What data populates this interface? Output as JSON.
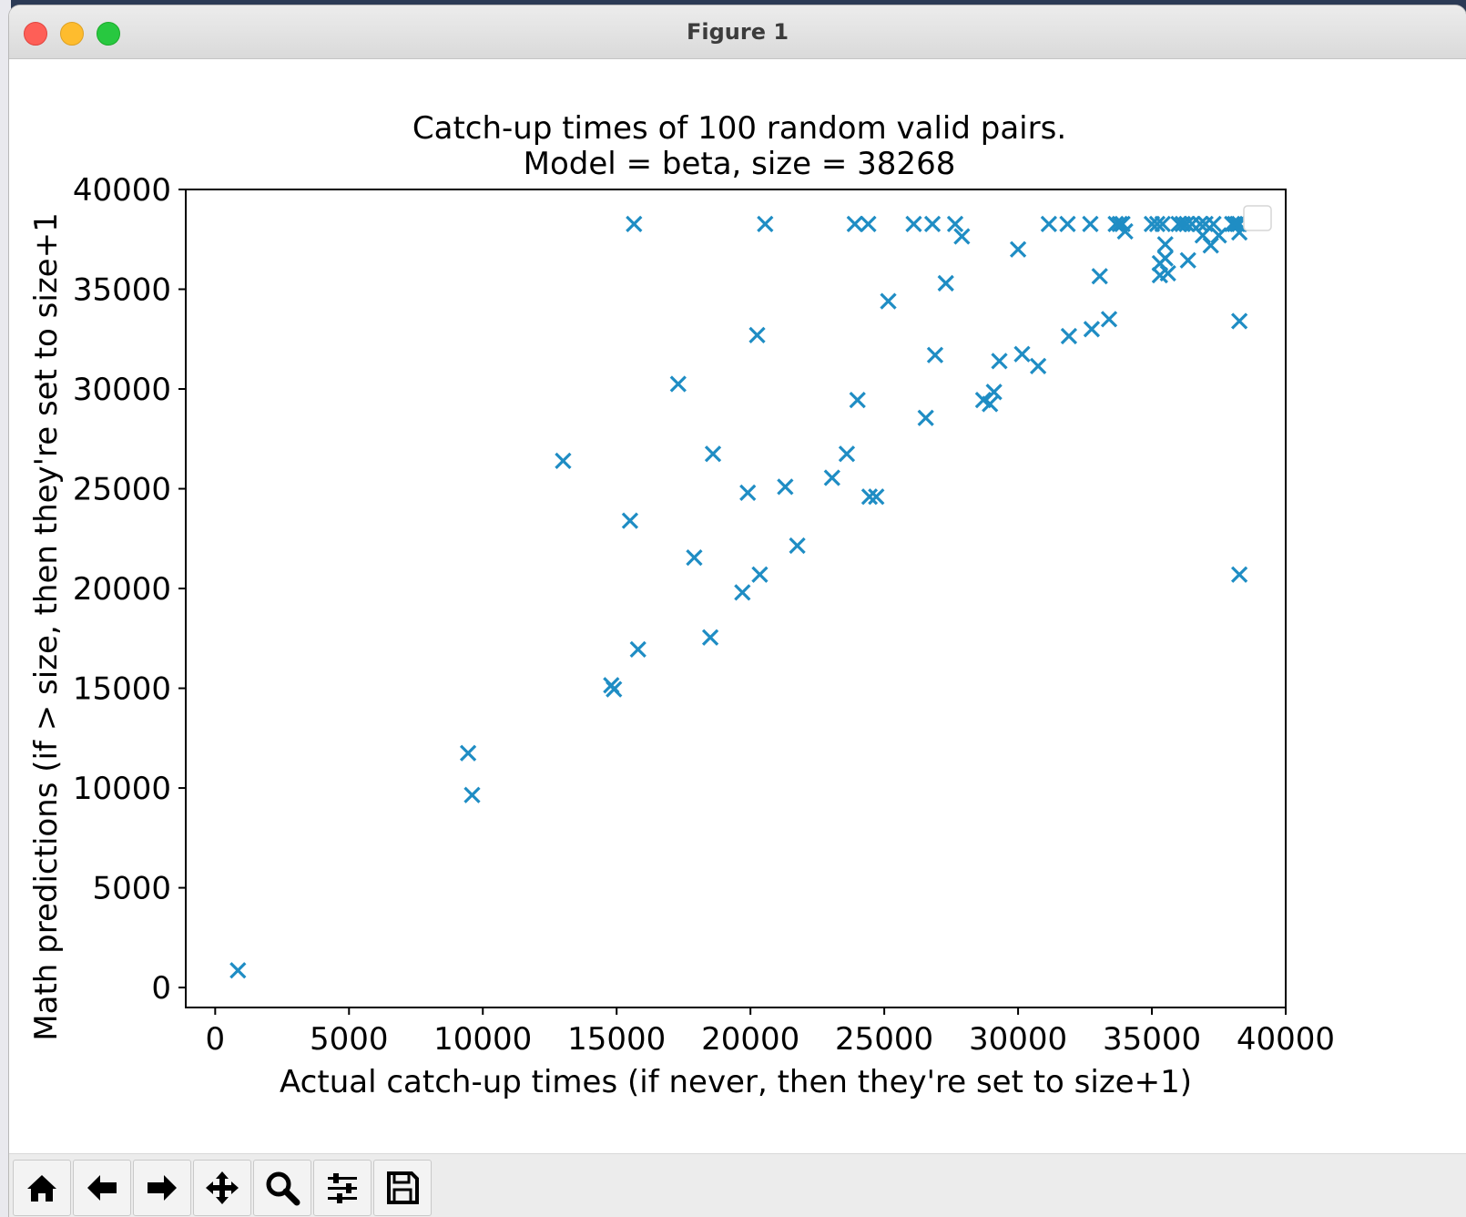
{
  "window": {
    "title": "Figure 1"
  },
  "toolbar": {
    "buttons": [
      {
        "name": "home",
        "icon": "home-icon"
      },
      {
        "name": "back",
        "icon": "arrow-left-icon"
      },
      {
        "name": "forward",
        "icon": "arrow-right-icon"
      },
      {
        "name": "pan",
        "icon": "move-icon"
      },
      {
        "name": "zoom",
        "icon": "magnifier-icon"
      },
      {
        "name": "configure-subplots",
        "icon": "sliders-icon"
      },
      {
        "name": "save",
        "icon": "floppy-disk-icon"
      }
    ]
  },
  "chart_data": {
    "type": "scatter",
    "title": "Catch-up times of 100 random valid pairs.",
    "subtitle": "Model = beta, size = 38268",
    "xlabel": "Actual catch-up times (if never, then they're set to size+1)",
    "ylabel": "Math predictions (if > size, then they're set to size+1",
    "xlim": [
      -1100,
      40000
    ],
    "ylim": [
      -1000,
      40000
    ],
    "xticks": [
      0,
      5000,
      10000,
      15000,
      20000,
      25000,
      30000,
      35000,
      40000
    ],
    "yticks": [
      0,
      5000,
      10000,
      15000,
      20000,
      25000,
      30000,
      35000,
      40000
    ],
    "marker": "x",
    "color": "#1f8dc4",
    "legend": "top-right (empty)",
    "grid": false,
    "series": [
      {
        "points": [
          [
            850,
            860
          ],
          [
            9450,
            11750
          ],
          [
            9600,
            9650
          ],
          [
            13000,
            26400
          ],
          [
            14800,
            15150
          ],
          [
            14900,
            14950
          ],
          [
            15500,
            23400
          ],
          [
            15650,
            38269
          ],
          [
            15800,
            16950
          ],
          [
            17300,
            30250
          ],
          [
            17900,
            21550
          ],
          [
            18500,
            17550
          ],
          [
            18600,
            26750
          ],
          [
            19700,
            19800
          ],
          [
            19900,
            24800
          ],
          [
            20250,
            32700
          ],
          [
            20350,
            20700
          ],
          [
            20550,
            38269
          ],
          [
            21300,
            25100
          ],
          [
            21750,
            22150
          ],
          [
            23050,
            25550
          ],
          [
            23600,
            26750
          ],
          [
            23900,
            38269
          ],
          [
            24000,
            29450
          ],
          [
            24400,
            38269
          ],
          [
            24450,
            24600
          ],
          [
            24700,
            24600
          ],
          [
            25150,
            34400
          ],
          [
            26100,
            38269
          ],
          [
            26550,
            28550
          ],
          [
            26800,
            38269
          ],
          [
            26900,
            31700
          ],
          [
            27300,
            35300
          ],
          [
            27650,
            38269
          ],
          [
            27900,
            37650
          ],
          [
            28700,
            29450
          ],
          [
            28950,
            29250
          ],
          [
            29100,
            29850
          ],
          [
            29300,
            31400
          ],
          [
            30000,
            37000
          ],
          [
            30150,
            31750
          ],
          [
            30750,
            31150
          ],
          [
            31150,
            38269
          ],
          [
            31850,
            38269
          ],
          [
            31900,
            32650
          ],
          [
            32700,
            38269
          ],
          [
            32750,
            33000
          ],
          [
            33050,
            35650
          ],
          [
            33400,
            33500
          ],
          [
            33650,
            38269
          ],
          [
            33800,
            38269
          ],
          [
            33900,
            38269
          ],
          [
            34000,
            37900
          ],
          [
            35000,
            38269
          ],
          [
            35200,
            38269
          ],
          [
            35300,
            35700
          ],
          [
            35300,
            36300
          ],
          [
            35400,
            38269
          ],
          [
            35500,
            37250
          ],
          [
            35500,
            36550
          ],
          [
            35600,
            35800
          ],
          [
            36000,
            38269
          ],
          [
            36150,
            38269
          ],
          [
            36300,
            38269
          ],
          [
            36350,
            36450
          ],
          [
            36500,
            38269
          ],
          [
            36800,
            38269
          ],
          [
            36900,
            37700
          ],
          [
            37000,
            38269
          ],
          [
            37200,
            37200
          ],
          [
            37300,
            38269
          ],
          [
            37500,
            37700
          ],
          [
            38000,
            38269
          ],
          [
            38100,
            38269
          ],
          [
            38200,
            38269
          ],
          [
            38269,
            38269
          ],
          [
            38269,
            37850
          ],
          [
            38269,
            33400
          ],
          [
            38269,
            20700
          ]
        ]
      }
    ]
  }
}
